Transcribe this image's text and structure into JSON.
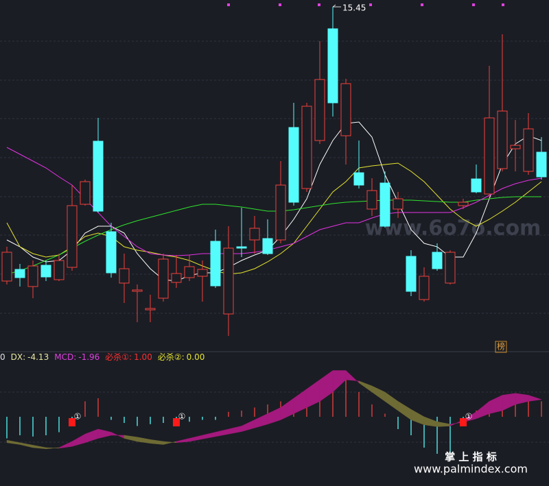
{
  "chart_data": [
    {
      "type": "candlestick",
      "open": [
        11.45,
        11.62,
        11.37,
        11.68,
        11.47,
        11.65,
        12.57,
        13.49,
        12.17,
        11.42,
        11.3,
        11.03,
        11.2,
        11.43,
        11.5,
        11.52,
        12.03,
        10.97,
        11.95,
        12.05,
        12.07,
        12.05,
        13.69,
        12.8,
        13.5,
        15.13,
        13.57,
        13.03,
        12.5,
        12.88,
        12.5,
        11.81,
        11.18,
        11.87,
        11.42,
        12.55,
        12.94,
        12.72,
        13.09,
        13.38,
        13.05,
        13.33
      ],
      "close": [
        11.87,
        11.5,
        11.67,
        11.51,
        11.75,
        12.55,
        12.9,
        12.47,
        11.57,
        11.63,
        11.32,
        11.05,
        11.77,
        11.56,
        11.66,
        11.62,
        11.38,
        11.93,
        11.93,
        12.22,
        11.85,
        12.85,
        12.6,
        14.0,
        14.39,
        14.05,
        14.33,
        12.85,
        12.77,
        12.25,
        12.65,
        11.3,
        11.52,
        11.63,
        11.87,
        12.6,
        12.75,
        13.83,
        13.93,
        13.43,
        13.67,
        12.97
      ],
      "high": [
        11.95,
        11.7,
        11.75,
        11.75,
        11.85,
        12.85,
        12.93,
        13.83,
        12.3,
        11.85,
        11.4,
        11.25,
        11.85,
        11.83,
        11.83,
        11.75,
        12.2,
        12.25,
        12.52,
        12.4,
        12.35,
        13.2,
        14.05,
        14.05,
        14.95,
        15.45,
        14.4,
        13.5,
        12.95,
        13.05,
        12.75,
        11.9,
        11.65,
        12.0,
        11.9,
        12.65,
        13.15,
        14.59,
        15.05,
        13.8,
        13.9,
        13.55
      ],
      "low": [
        11.4,
        11.37,
        11.2,
        11.45,
        11.45,
        11.6,
        12.55,
        12.45,
        11.5,
        11.13,
        10.85,
        10.85,
        11.15,
        11.35,
        11.45,
        11.15,
        11.35,
        10.65,
        11.8,
        11.85,
        11.83,
        12.0,
        12.55,
        12.75,
        13.45,
        13.85,
        13.15,
        12.8,
        12.4,
        12.23,
        12.37,
        11.23,
        11.15,
        11.6,
        11.4,
        12.5,
        12.73,
        12.65,
        13.05,
        13.05,
        13.0,
        12.93
      ],
      "up_color": "#f0413c",
      "down_color": "#54fcfc",
      "ylim": [
        10.55,
        15.55
      ],
      "annotation": 15.45,
      "lines": [
        {
          "color": "#ffffff",
          "values": [
            12.05,
            11.95,
            11.8,
            11.73,
            11.75,
            11.9,
            12.15,
            12.25,
            12.25,
            12.15,
            11.85,
            11.63,
            11.47,
            11.45,
            11.53,
            11.57,
            11.57,
            11.65,
            11.75,
            11.83,
            11.9,
            12.1,
            12.35,
            12.65,
            13.15,
            13.5,
            13.75,
            13.77,
            13.55,
            13.0,
            12.6,
            12.2,
            12.0,
            11.95,
            11.8,
            11.8,
            12.15,
            12.65,
            13.15,
            13.45,
            13.57,
            13.5
          ]
        },
        {
          "color": "#e6e62e",
          "values": [
            12.3,
            11.95,
            11.85,
            11.8,
            11.83,
            11.95,
            12.1,
            12.15,
            12.1,
            11.95,
            11.9,
            11.87,
            11.83,
            11.8,
            11.75,
            11.67,
            11.6,
            11.55,
            11.57,
            11.63,
            11.73,
            11.85,
            12.0,
            12.25,
            12.5,
            12.75,
            12.9,
            13.1,
            13.13,
            13.15,
            13.17,
            13.05,
            12.9,
            12.7,
            12.5,
            12.35,
            12.25,
            12.35,
            12.47,
            12.6,
            12.75,
            12.9
          ]
        },
        {
          "color": "#2ee62e",
          "values": [
            11.55,
            11.6,
            11.67,
            11.75,
            11.83,
            11.93,
            12.03,
            12.12,
            12.2,
            12.27,
            12.33,
            12.38,
            12.43,
            12.48,
            12.53,
            12.57,
            12.57,
            12.55,
            12.53,
            12.5,
            12.47,
            12.47,
            12.49,
            12.52,
            12.55,
            12.58,
            12.6,
            12.61,
            12.62,
            12.63,
            12.63,
            12.63,
            12.62,
            12.61,
            12.6,
            12.6,
            12.63,
            12.65,
            12.67,
            12.68,
            12.68,
            12.68
          ]
        },
        {
          "color": "#e632e6",
          "values": [
            13.4,
            13.3,
            13.2,
            13.1,
            12.97,
            12.85,
            12.65,
            12.45,
            12.25,
            12.1,
            11.95,
            11.85,
            11.83,
            11.82,
            11.83,
            11.85,
            11.85,
            11.85,
            11.85,
            11.87,
            11.9,
            11.95,
            12.0,
            12.1,
            12.2,
            12.25,
            12.3,
            12.3,
            12.37,
            12.43,
            12.45,
            12.45,
            12.45,
            12.45,
            12.45,
            12.52,
            12.6,
            12.7,
            12.8,
            12.87,
            12.92,
            12.95
          ]
        }
      ]
    },
    {
      "type": "indicator",
      "status": [
        {
          "name": "0",
          "color": "#e0e0e0"
        },
        {
          "name": "DX:",
          "value": -4.13,
          "color": "#e8e8a0"
        },
        {
          "name": "MCD:",
          "value": -1.96,
          "color": "#e040e0"
        },
        {
          "name": "必杀①:",
          "value": 1,
          "value_label": "1.00",
          "color": "#ff3030"
        },
        {
          "name": "必杀②:",
          "value": 0,
          "value_label": "0.00",
          "color": "#e6e62e"
        }
      ],
      "ylim": [
        -10,
        10
      ],
      "values": [
        -3.5,
        -3,
        -3.2,
        -3,
        -2.5,
        -1,
        2.5,
        3,
        -0.5,
        -1,
        -1.5,
        -1.2,
        -1,
        -1,
        -0.8,
        -0.5,
        -0.5,
        0.8,
        1,
        1.5,
        2,
        2.5,
        3,
        3.5,
        4.5,
        6,
        6.5,
        4,
        2,
        0.5,
        -2,
        -3,
        -5,
        -6,
        -6,
        -1,
        1,
        2.5,
        3.5,
        3.5,
        3,
        2.5
      ],
      "fast": [
        -4.2,
        -4.5,
        -5,
        -5.2,
        -5,
        -4,
        -2.8,
        -2,
        -2.5,
        -3.5,
        -4,
        -4.3,
        -4.5,
        -4,
        -3.5,
        -3,
        -2.5,
        -2,
        -1.5,
        -0.5,
        0.5,
        1.5,
        3,
        4.5,
        6,
        7.5,
        7.5,
        5.5,
        4,
        2.5,
        1,
        -0.5,
        -1.3,
        -1.6,
        -1.5,
        -0.5,
        0.8,
        2.5,
        3.5,
        3.8,
        3.5,
        2.8
      ],
      "slow": [
        -3.8,
        -4.2,
        -4.6,
        -5,
        -5.1,
        -4.8,
        -4.2,
        -3.5,
        -3,
        -3,
        -3.3,
        -3.7,
        -4,
        -4.2,
        -4,
        -3.6,
        -3.2,
        -2.8,
        -2.4,
        -1.8,
        -1.2,
        -0.5,
        0.5,
        1.5,
        2.5,
        4,
        6,
        5.8,
        5,
        4,
        2.5,
        1.2,
        0,
        -0.8,
        -1.2,
        -0.9,
        -0.3,
        0.5,
        1,
        2,
        2.5,
        2.8
      ],
      "signal": [
        0,
        0,
        0,
        0,
        0,
        1,
        0,
        0,
        0,
        0,
        0,
        0,
        0,
        1,
        0,
        0,
        0,
        0,
        0,
        0,
        0,
        0,
        0,
        0,
        0,
        0,
        0,
        0,
        0,
        0,
        0,
        0,
        0,
        0,
        0,
        1,
        0,
        0,
        0,
        0,
        0,
        0
      ],
      "signal_symbol": "①",
      "up_color": "#f0413c",
      "down_color": "#54fcfc",
      "signal_color": "#ff1a1a",
      "bull_fill": "#a3197d",
      "bear_fill": "#6e6b34"
    }
  ],
  "badge": "榜",
  "watermark": "www.6o7o.com",
  "brand": "掌 上 指 标",
  "site": "www.palmindex.com"
}
